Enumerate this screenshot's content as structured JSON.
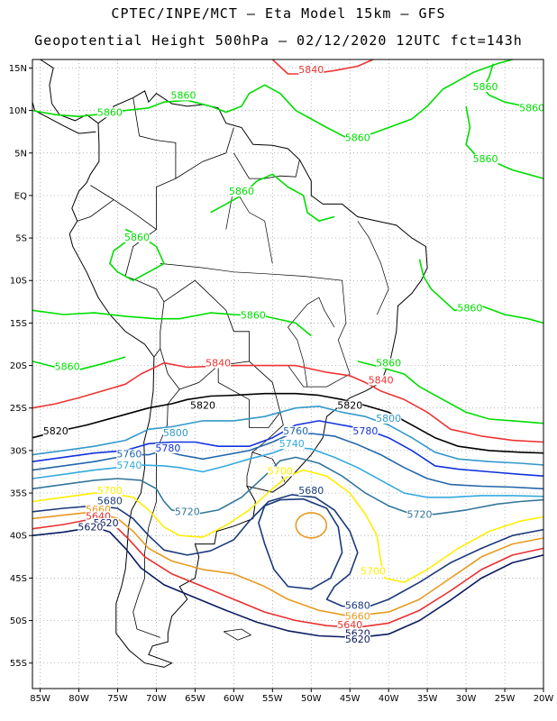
{
  "header": {
    "line1": "CPTEC/INPE/MCT –  Eta Model 15km – GFS",
    "line2": "Geopotential Height 500hPa – 02/12/2020 12UTC fct=143h"
  },
  "map": {
    "lon_range": [
      -86,
      -20
    ],
    "lat_range": [
      -58,
      16
    ],
    "lon_ticks": [
      {
        "v": -85,
        "label": "85W"
      },
      {
        "v": -80,
        "label": "80W"
      },
      {
        "v": -75,
        "label": "75W"
      },
      {
        "v": -70,
        "label": "70W"
      },
      {
        "v": -65,
        "label": "65W"
      },
      {
        "v": -60,
        "label": "60W"
      },
      {
        "v": -55,
        "label": "55W"
      },
      {
        "v": -50,
        "label": "50W"
      },
      {
        "v": -45,
        "label": "45W"
      },
      {
        "v": -40,
        "label": "40W"
      },
      {
        "v": -35,
        "label": "35W"
      },
      {
        "v": -30,
        "label": "30W"
      },
      {
        "v": -25,
        "label": "25W"
      },
      {
        "v": -20,
        "label": "20W"
      }
    ],
    "lat_ticks": [
      {
        "v": 15,
        "label": "15N"
      },
      {
        "v": 10,
        "label": "10N"
      },
      {
        "v": 5,
        "label": "5N"
      },
      {
        "v": 0,
        "label": "EQ"
      },
      {
        "v": -5,
        "label": "5S"
      },
      {
        "v": -10,
        "label": "10S"
      },
      {
        "v": -15,
        "label": "15S"
      },
      {
        "v": -20,
        "label": "20S"
      },
      {
        "v": -25,
        "label": "25S"
      },
      {
        "v": -30,
        "label": "30S"
      },
      {
        "v": -35,
        "label": "35S"
      },
      {
        "v": -40,
        "label": "40S"
      },
      {
        "v": -45,
        "label": "45S"
      },
      {
        "v": -50,
        "label": "50S"
      },
      {
        "v": -55,
        "label": "55S"
      }
    ],
    "colors": {
      "5860": "#00dd00",
      "5840": "#ee3333",
      "5820": "#000000",
      "5800": "#3399cc",
      "5780": "#1133dd",
      "5760": "#2266aa",
      "5740": "#33aadd",
      "5720": "#337799",
      "5700": "#ffee00",
      "5680": "#1a3a7a",
      "5660": "#e89a20",
      "5640": "#e83030",
      "5620": "#0a1a60"
    },
    "contour_labels": [
      {
        "text": "5840",
        "lon": -50,
        "lat": 14.5,
        "level": "5840"
      },
      {
        "text": "5860",
        "lon": -76,
        "lat": 9.5,
        "level": "5860"
      },
      {
        "text": "5860",
        "lon": -66.5,
        "lat": 11.5,
        "level": "5860"
      },
      {
        "text": "5860",
        "lon": -27.5,
        "lat": 12.5,
        "level": "5860"
      },
      {
        "text": "5860",
        "lon": -21.5,
        "lat": 10,
        "level": "5860"
      },
      {
        "text": "5860",
        "lon": -44,
        "lat": 6.5,
        "level": "5860"
      },
      {
        "text": "5860",
        "lon": -27.5,
        "lat": 4,
        "level": "5860"
      },
      {
        "text": "5860",
        "lon": -59,
        "lat": 0.2,
        "level": "5860"
      },
      {
        "text": "5860",
        "lon": -72.5,
        "lat": -5.2,
        "level": "5860"
      },
      {
        "text": "5860",
        "lon": -57.5,
        "lat": -14.4,
        "level": "5860"
      },
      {
        "text": "5860",
        "lon": -29.5,
        "lat": -13.5,
        "level": "5860"
      },
      {
        "text": "5860",
        "lon": -81.5,
        "lat": -20.4,
        "level": "5860"
      },
      {
        "text": "5860",
        "lon": -40,
        "lat": -20,
        "level": "5860"
      },
      {
        "text": "5840",
        "lon": -62,
        "lat": -20,
        "level": "5840"
      },
      {
        "text": "5840",
        "lon": -41,
        "lat": -22,
        "level": "5840"
      },
      {
        "text": "5820",
        "lon": -64,
        "lat": -25,
        "level": "5820"
      },
      {
        "text": "5820",
        "lon": -83,
        "lat": -28,
        "level": "5820"
      },
      {
        "text": "5820",
        "lon": -45,
        "lat": -25,
        "level": "5820"
      },
      {
        "text": "5800",
        "lon": -67.5,
        "lat": -28.2,
        "level": "5800"
      },
      {
        "text": "5800",
        "lon": -40,
        "lat": -26.5,
        "level": "5800"
      },
      {
        "text": "5780",
        "lon": -68.5,
        "lat": -30,
        "level": "5780"
      },
      {
        "text": "5780",
        "lon": -43,
        "lat": -28,
        "level": "5780"
      },
      {
        "text": "5760",
        "lon": -73.5,
        "lat": -30.7,
        "level": "5760"
      },
      {
        "text": "5760",
        "lon": -52,
        "lat": -28,
        "level": "5760"
      },
      {
        "text": "5740",
        "lon": -73.5,
        "lat": -32,
        "level": "5740"
      },
      {
        "text": "5740",
        "lon": -52.5,
        "lat": -29.5,
        "level": "5740"
      },
      {
        "text": "5700",
        "lon": -54,
        "lat": -32.7,
        "level": "5700"
      },
      {
        "text": "5700",
        "lon": -76,
        "lat": -35,
        "level": "5700"
      },
      {
        "text": "5680",
        "lon": -76,
        "lat": -36.2,
        "level": "5680"
      },
      {
        "text": "5660",
        "lon": -77.5,
        "lat": -37.2,
        "level": "5660"
      },
      {
        "text": "5640",
        "lon": -77.5,
        "lat": -38,
        "level": "5640"
      },
      {
        "text": "5620",
        "lon": -76.5,
        "lat": -38.8,
        "level": "5620"
      },
      {
        "text": "5620",
        "lon": -78.5,
        "lat": -39.3,
        "level": "5620"
      },
      {
        "text": "5720",
        "lon": -66,
        "lat": -37.5,
        "level": "5720"
      },
      {
        "text": "5720",
        "lon": -36,
        "lat": -37.8,
        "level": "5720"
      },
      {
        "text": "5680",
        "lon": -50,
        "lat": -35,
        "level": "5680"
      },
      {
        "text": "5700",
        "lon": -42,
        "lat": -44.5,
        "level": "5700"
      },
      {
        "text": "5680",
        "lon": -44,
        "lat": -48.5,
        "level": "5680"
      },
      {
        "text": "5660",
        "lon": -44,
        "lat": -49.8,
        "level": "5660"
      },
      {
        "text": "5640",
        "lon": -45,
        "lat": -50.8,
        "level": "5640"
      },
      {
        "text": "5620",
        "lon": -44,
        "lat": -51.8,
        "level": "5620"
      },
      {
        "text": "5620",
        "lon": -44,
        "lat": -52.5,
        "level": "5620"
      }
    ]
  }
}
